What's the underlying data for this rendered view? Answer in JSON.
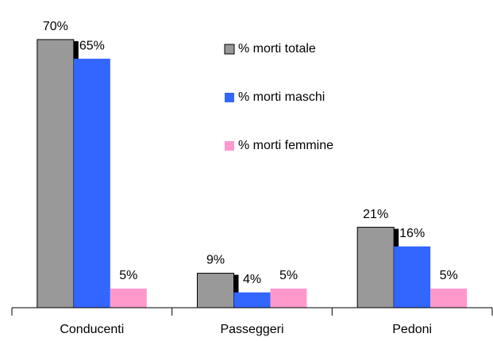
{
  "chart_data": {
    "type": "bar",
    "categories": [
      "Conducenti",
      "Passeggeri",
      "Pedoni"
    ],
    "series": [
      {
        "name": "% morti totale",
        "color": "#999999",
        "values": [
          70,
          9,
          21
        ],
        "value_labels": [
          "70%",
          "9%",
          "21%"
        ]
      },
      {
        "name": "% morti maschi",
        "color": "#3366ff",
        "values": [
          65,
          4,
          16
        ],
        "value_labels": [
          "65%",
          "4%",
          "16%"
        ]
      },
      {
        "name": "% morti femmine",
        "color": "#ff99cc",
        "values": [
          5,
          5,
          5
        ],
        "value_labels": [
          "5%",
          "5%",
          "5%"
        ]
      }
    ],
    "legend": "top-right"
  }
}
